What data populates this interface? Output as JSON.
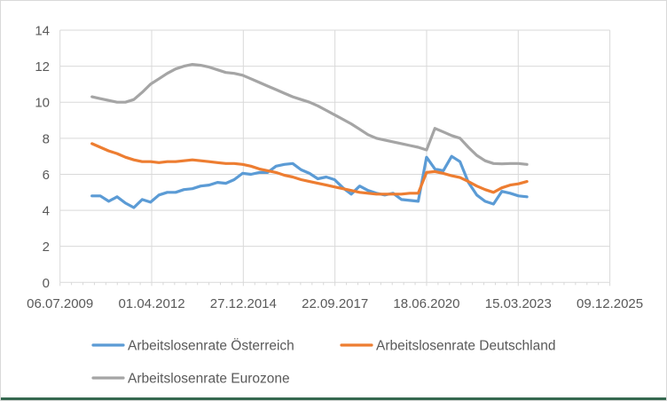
{
  "frame": {
    "background": "#FFFFFF",
    "border_color": "#D9D9D9",
    "bottom_bar_color": "#35684F"
  },
  "chart_data": {
    "type": "line",
    "title": "",
    "xlabel": "",
    "ylabel": "",
    "grid": true,
    "gridline_color": "#D9D9D9",
    "axis_text_color": "#595959",
    "legend_position": "bottom",
    "y_axis": {
      "range": [
        0,
        14
      ],
      "ticks": [
        0,
        2,
        4,
        6,
        8,
        10,
        12,
        14
      ]
    },
    "x_axis": {
      "tick_labels": [
        "06.07.2009",
        "01.04.2012",
        "27.12.2014",
        "22.09.2017",
        "18.06.2020",
        "15.03.2023",
        "09.12.2025"
      ],
      "minor_ticks_per_interval": 8
    },
    "series_x_placement": {
      "first_point_frac": 0.0581,
      "spacing_frac": 0.015212,
      "points": 53
    },
    "series": [
      {
        "name": "Arbeitslosenrate Österreich",
        "slug": "oesterreich",
        "color": "#5B9BD5",
        "values": [
          4.8,
          4.8,
          4.5,
          4.75,
          4.4,
          4.15,
          4.6,
          4.45,
          4.85,
          5.0,
          5.0,
          5.15,
          5.2,
          5.35,
          5.4,
          5.55,
          5.5,
          5.7,
          6.05,
          6.0,
          6.1,
          6.1,
          6.45,
          6.55,
          6.6,
          6.25,
          6.05,
          5.75,
          5.85,
          5.7,
          5.25,
          4.9,
          5.35,
          5.1,
          4.95,
          4.85,
          4.95,
          4.6,
          4.55,
          4.5,
          6.95,
          6.3,
          6.2,
          7.0,
          6.7,
          5.55,
          4.85,
          4.5,
          4.35,
          5.05,
          4.95,
          4.8,
          4.75
        ]
      },
      {
        "name": "Arbeitslosenrate Deutschland",
        "slug": "deutschland",
        "color": "#ED7D31",
        "values": [
          7.7,
          7.5,
          7.3,
          7.15,
          6.95,
          6.8,
          6.7,
          6.7,
          6.65,
          6.7,
          6.7,
          6.75,
          6.8,
          6.75,
          6.7,
          6.65,
          6.6,
          6.6,
          6.55,
          6.45,
          6.3,
          6.2,
          6.1,
          5.95,
          5.85,
          5.7,
          5.6,
          5.5,
          5.4,
          5.3,
          5.2,
          5.1,
          5.0,
          4.95,
          4.9,
          4.9,
          4.9,
          4.9,
          4.95,
          4.95,
          6.1,
          6.15,
          6.05,
          5.92,
          5.82,
          5.6,
          5.35,
          5.15,
          5.0,
          5.25,
          5.4,
          5.47,
          5.6
        ]
      },
      {
        "name": "Arbeitslosenrate Eurozone",
        "slug": "eurozone",
        "color": "#A5A5A5",
        "values": [
          10.3,
          10.2,
          10.1,
          10.0,
          10.0,
          10.15,
          10.55,
          11.0,
          11.3,
          11.6,
          11.85,
          12.0,
          12.1,
          12.05,
          11.95,
          11.8,
          11.65,
          11.6,
          11.5,
          11.3,
          11.1,
          10.9,
          10.7,
          10.5,
          10.3,
          10.15,
          10.0,
          9.8,
          9.55,
          9.3,
          9.05,
          8.8,
          8.5,
          8.2,
          8.0,
          7.9,
          7.8,
          7.7,
          7.6,
          7.5,
          7.35,
          8.55,
          8.35,
          8.15,
          8.0,
          7.5,
          7.05,
          6.75,
          6.6,
          6.58,
          6.6,
          6.6,
          6.55
        ]
      }
    ],
    "legend": {
      "items": [
        "Arbeitslosenrate Österreich",
        "Arbeitslosenrate Deutschland",
        "Arbeitslosenrate Eurozone"
      ]
    }
  }
}
